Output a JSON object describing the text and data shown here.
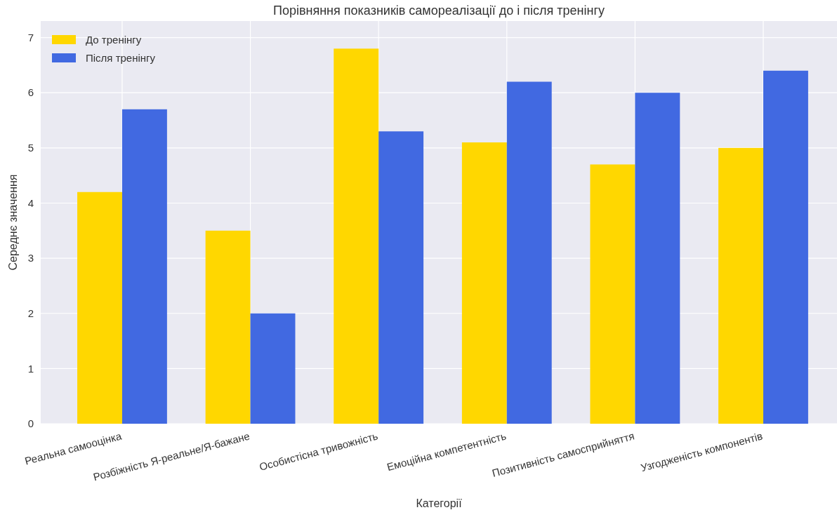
{
  "chart_data": {
    "type": "bar",
    "title": "Порівняння показників самореалізації до і після тренінгу",
    "xlabel": "Категорії",
    "ylabel": "Середнє значення",
    "categories": [
      "Реальна самооцінка",
      "Розбіжність Я-реальне/Я-бажане",
      "Особистісна тривожність",
      "Емоційна компетентність",
      "Позитивність самосприйняття",
      "Узгодженість компонентів"
    ],
    "series": [
      {
        "name": "До тренінгу",
        "color": "#ffd700",
        "values": [
          4.2,
          3.5,
          6.8,
          5.1,
          4.7,
          5.0
        ]
      },
      {
        "name": "Після тренінгу",
        "color": "#4169e1",
        "values": [
          5.7,
          2.0,
          5.3,
          6.2,
          6.0,
          6.4
        ]
      }
    ],
    "ylim": [
      0,
      7.3
    ],
    "yticks": [
      0,
      1,
      2,
      3,
      4,
      5,
      6,
      7
    ],
    "grid": true,
    "legend": "top left"
  }
}
